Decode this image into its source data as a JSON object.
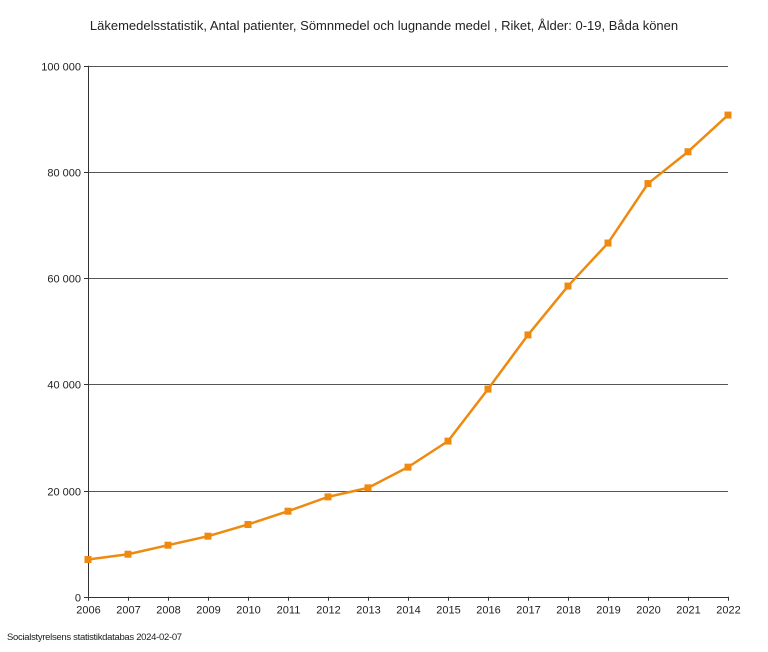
{
  "chart_data": {
    "type": "line",
    "title": "Läkemedelsstatistik, Antal patienter, Sömnmedel och lugnande medel , Riket, Ålder: 0-19, Båda könen",
    "xlabel": "",
    "ylabel": "",
    "categories": [
      "2006",
      "2007",
      "2008",
      "2009",
      "2010",
      "2011",
      "2012",
      "2013",
      "2014",
      "2015",
      "2016",
      "2017",
      "2018",
      "2019",
      "2020",
      "2021",
      "2022"
    ],
    "series": [
      {
        "values": [
          7000,
          8000,
          9700,
          11400,
          13600,
          16100,
          18800,
          20500,
          24400,
          29300,
          39100,
          49300,
          58500,
          66600,
          77800,
          83800,
          90700
        ],
        "color": "#EE8A10"
      }
    ],
    "ylim": [
      0,
      100000
    ],
    "yticks": [
      0,
      20000,
      40000,
      60000,
      80000,
      100000
    ],
    "ytick_labels": [
      "0",
      "20 000",
      "40 000",
      "60 000",
      "80 000",
      "100 000"
    ],
    "grid": true,
    "legend": "none"
  },
  "footer": {
    "source": "Socialstyrelsens statistikdatabas 2024-02-07"
  }
}
